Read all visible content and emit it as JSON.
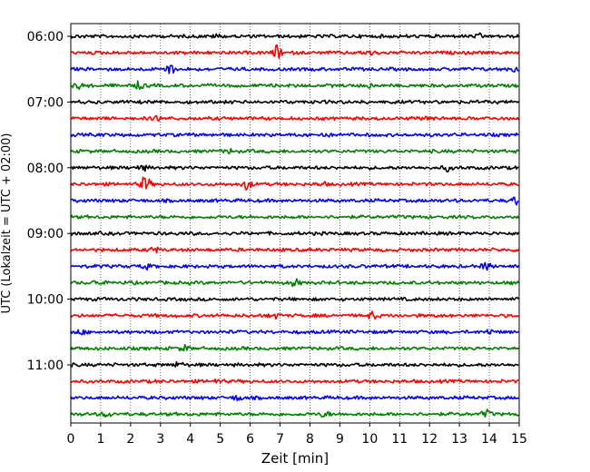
{
  "chart_data": {
    "type": "line",
    "title": "",
    "xlabel": "Zeit  [min]",
    "ylabel": "UTC (Lokalzeit = UTC + 02:00)",
    "xlim": [
      0,
      15
    ],
    "x_ticks": [
      "0",
      "1",
      "2",
      "3",
      "4",
      "5",
      "6",
      "7",
      "8",
      "9",
      "10",
      "11",
      "12",
      "13",
      "14",
      "15"
    ],
    "y_ticks": [
      "06:00",
      "07:00",
      "08:00",
      "09:00",
      "10:00",
      "11:00"
    ],
    "grid": "vertical-dotted",
    "color_cycle": [
      "#000000",
      "#ff0000",
      "#0000ff",
      "#008000"
    ],
    "trace_count": 24,
    "start_time": "06:00",
    "minutes_per_trace": 15,
    "events": [
      {
        "trace": 0,
        "minute": 4.9,
        "amp": 0.2
      },
      {
        "trace": 0,
        "minute": 13.7,
        "amp": 0.2
      },
      {
        "trace": 1,
        "minute": 6.9,
        "amp": 0.8
      },
      {
        "trace": 1,
        "minute": 10.0,
        "amp": 0.3
      },
      {
        "trace": 2,
        "minute": 3.3,
        "amp": 0.7
      },
      {
        "trace": 2,
        "minute": 14.8,
        "amp": 0.3
      },
      {
        "trace": 3,
        "minute": 0.3,
        "amp": 0.3
      },
      {
        "trace": 3,
        "minute": 2.3,
        "amp": 0.4
      },
      {
        "trace": 3,
        "minute": 10.0,
        "amp": 0.2
      },
      {
        "trace": 5,
        "minute": 2.9,
        "amp": 0.3
      },
      {
        "trace": 5,
        "minute": 11.9,
        "amp": 0.3
      },
      {
        "trace": 6,
        "minute": 8.5,
        "amp": 0.2
      },
      {
        "trace": 7,
        "minute": 5.3,
        "amp": 0.2
      },
      {
        "trace": 8,
        "minute": 2.4,
        "amp": 0.3
      },
      {
        "trace": 8,
        "minute": 12.6,
        "amp": 0.3
      },
      {
        "trace": 9,
        "minute": 2.5,
        "amp": 1.0
      },
      {
        "trace": 9,
        "minute": 5.9,
        "amp": 0.6
      },
      {
        "trace": 9,
        "minute": 8.4,
        "amp": 0.2
      },
      {
        "trace": 10,
        "minute": 14.9,
        "amp": 0.5
      },
      {
        "trace": 13,
        "minute": 2.8,
        "amp": 0.3
      },
      {
        "trace": 14,
        "minute": 2.5,
        "amp": 0.3
      },
      {
        "trace": 14,
        "minute": 13.9,
        "amp": 0.4
      },
      {
        "trace": 15,
        "minute": 0.9,
        "amp": 0.3
      },
      {
        "trace": 15,
        "minute": 7.5,
        "amp": 0.4
      },
      {
        "trace": 17,
        "minute": 6.8,
        "amp": 0.3
      },
      {
        "trace": 17,
        "minute": 10.1,
        "amp": 0.4
      },
      {
        "trace": 18,
        "minute": 0.3,
        "amp": 0.3
      },
      {
        "trace": 18,
        "minute": 14.0,
        "amp": 0.2
      },
      {
        "trace": 19,
        "minute": 3.8,
        "amp": 0.3
      },
      {
        "trace": 20,
        "minute": 3.6,
        "amp": 0.3
      },
      {
        "trace": 21,
        "minute": 4.9,
        "amp": 0.2
      },
      {
        "trace": 22,
        "minute": 5.6,
        "amp": 0.3
      },
      {
        "trace": 23,
        "minute": 1.2,
        "amp": 0.3
      },
      {
        "trace": 23,
        "minute": 8.5,
        "amp": 0.3
      },
      {
        "trace": 23,
        "minute": 13.9,
        "amp": 0.4
      }
    ]
  }
}
